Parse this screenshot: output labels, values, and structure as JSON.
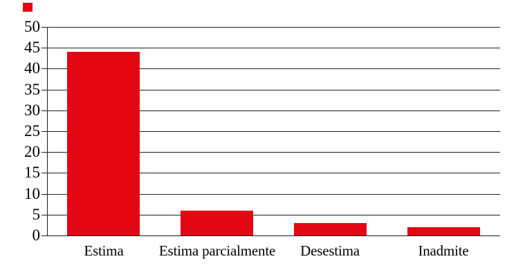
{
  "chart_data": {
    "type": "bar",
    "categories": [
      "Estima",
      "Estima parcialmente",
      "Desestima",
      "Inadmite"
    ],
    "values": [
      44,
      6,
      3,
      2
    ],
    "yticks": [
      0,
      5,
      10,
      15,
      20,
      25,
      30,
      35,
      40,
      45,
      50
    ],
    "ylim": [
      0,
      50
    ],
    "grid": "horizontal",
    "legend": "none",
    "bar_color": "#e30613",
    "gridline_color": "#1c1c1c",
    "axis_color": "#1c1c1c",
    "text_color": "#000000",
    "background": "#ffffff"
  },
  "legend_marker": {
    "shape": "square",
    "color": "#e30613"
  }
}
